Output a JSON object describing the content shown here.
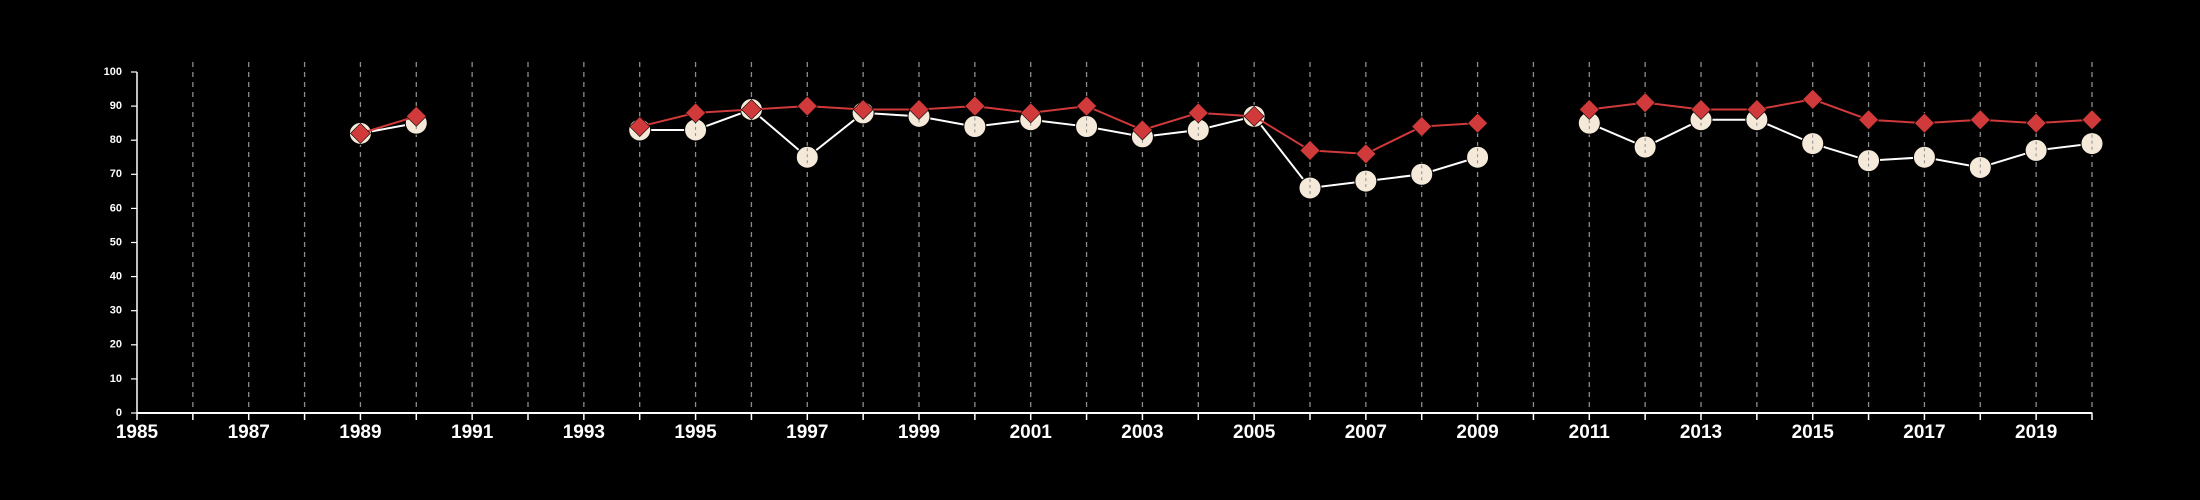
{
  "chart_data": {
    "type": "line",
    "title": "",
    "xlabel": "",
    "ylabel": "",
    "xlim": [
      1985,
      2020
    ],
    "ylim": [
      0,
      100
    ],
    "x_ticks": [
      1985,
      1987,
      1989,
      1991,
      1993,
      1995,
      1997,
      1999,
      2001,
      2003,
      2005,
      2007,
      2009,
      2011,
      2013,
      2015,
      2017,
      2019
    ],
    "y_ticks": [
      0,
      10,
      20,
      30,
      40,
      50,
      60,
      70,
      80,
      90,
      100
    ],
    "x_tick_labels": [
      "1985",
      "1987",
      "1989",
      "1991",
      "1993",
      "1995",
      "1997",
      "1999",
      "2001",
      "2003",
      "2005",
      "2007",
      "2009",
      "2011",
      "2013",
      "2015",
      "2017",
      "2019"
    ],
    "y_tick_labels": [
      "0",
      "10",
      "20",
      "30",
      "40",
      "50",
      "60",
      "70",
      "80",
      "90",
      "100"
    ],
    "vertical_grid": "dashed, every year from 1986 to 2020",
    "legend": "none",
    "series": [
      {
        "marker": "circle",
        "color": "#ffffff",
        "marker_fill": "#f5ead9",
        "points": [
          [
            1989,
            82
          ],
          [
            1990,
            85
          ],
          [
            1994,
            83
          ],
          [
            1995,
            83
          ],
          [
            1996,
            89
          ],
          [
            1997,
            75
          ],
          [
            1998,
            88
          ],
          [
            1999,
            87
          ],
          [
            2000,
            84
          ],
          [
            2001,
            86
          ],
          [
            2002,
            84
          ],
          [
            2003,
            81
          ],
          [
            2004,
            83
          ],
          [
            2005,
            87
          ],
          [
            2006,
            66
          ],
          [
            2007,
            68
          ],
          [
            2008,
            70
          ],
          [
            2009,
            75
          ],
          [
            2011,
            85
          ],
          [
            2012,
            78
          ],
          [
            2013,
            86
          ],
          [
            2014,
            86
          ],
          [
            2015,
            79
          ],
          [
            2016,
            74
          ],
          [
            2017,
            75
          ],
          [
            2018,
            72
          ],
          [
            2019,
            77
          ],
          [
            2020,
            79
          ]
        ]
      },
      {
        "marker": "diamond",
        "color": "#d03a3a",
        "points": [
          [
            1989,
            82
          ],
          [
            1990,
            87
          ],
          [
            1994,
            84
          ],
          [
            1995,
            88
          ],
          [
            1996,
            89
          ],
          [
            1997,
            90
          ],
          [
            1998,
            89
          ],
          [
            1999,
            89
          ],
          [
            2000,
            90
          ],
          [
            2001,
            88
          ],
          [
            2002,
            90
          ],
          [
            2003,
            83
          ],
          [
            2004,
            88
          ],
          [
            2005,
            87
          ],
          [
            2006,
            77
          ],
          [
            2007,
            76
          ],
          [
            2008,
            84
          ],
          [
            2009,
            85
          ],
          [
            2011,
            89
          ],
          [
            2012,
            91
          ],
          [
            2013,
            89
          ],
          [
            2014,
            89
          ],
          [
            2015,
            92
          ],
          [
            2016,
            86
          ],
          [
            2017,
            85
          ],
          [
            2018,
            86
          ],
          [
            2019,
            85
          ],
          [
            2020,
            86
          ]
        ]
      }
    ]
  }
}
